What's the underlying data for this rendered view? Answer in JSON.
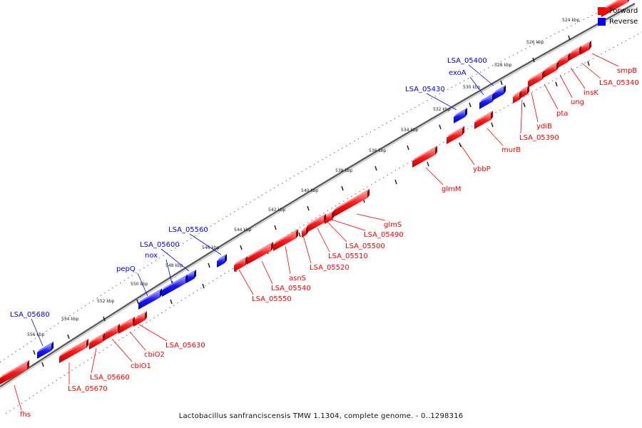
{
  "caption": "Lactobacillus sanfranciscensis TMW 1.1304, complete genome. - 0..1298316",
  "legend": [
    {
      "label": "Forward",
      "color": "#ff0000"
    },
    {
      "label": "Reverse",
      "color": "#0000ff"
    }
  ],
  "colors": {
    "forward": "#ff0000",
    "reverse": "#0000ff",
    "backbone": "#777777"
  },
  "ticks": [
    "524 kbp",
    "526 kbp",
    "528 kbp",
    "530 kbp",
    "532 kbp",
    "534 kbp",
    "536 kbp",
    "538 kbp",
    "540 kbp",
    "542 kbp",
    "544 kbp",
    "546 kbp",
    "548 kbp",
    "550 kbp",
    "552 kbp",
    "554 kbp",
    "556 kbp"
  ],
  "genes": {
    "forward": [
      "smpB",
      "LSA_05340",
      "insK",
      "ung",
      "pta",
      "ydiB",
      "LSA_05390",
      "murB",
      "ybbP",
      "glmM",
      "glmS",
      "LSA_05490",
      "LSA_05500",
      "LSA_05510",
      "LSA_05520",
      "asnS",
      "LSA_05540",
      "LSA_05550",
      "LSA_05630",
      "cbiO2",
      "cbiO1",
      "LSA_05660",
      "LSA_05670",
      "fhs"
    ],
    "reverse": [
      "LSA_05400",
      "exoA",
      "LSA_05430",
      "LSA_05560",
      "LSA_05600",
      "nox",
      "pepQ",
      "LSA_05680"
    ]
  }
}
